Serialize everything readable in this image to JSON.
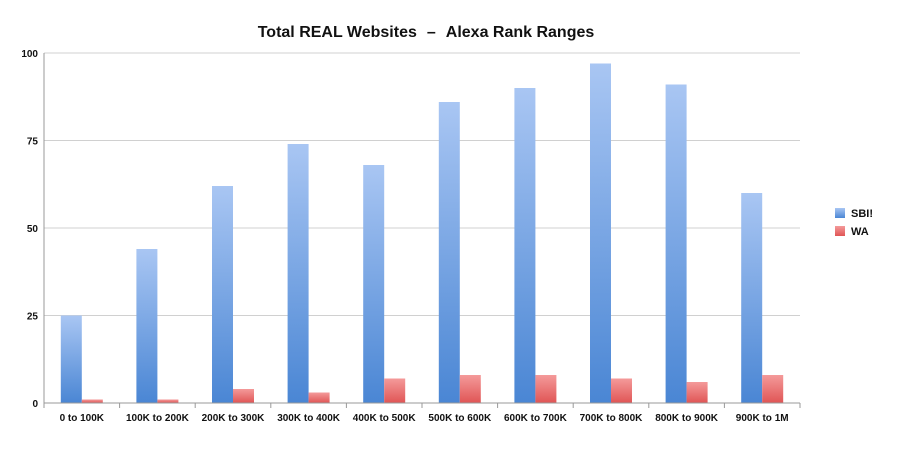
{
  "chart_data": {
    "type": "bar",
    "title": "Total REAL Websites",
    "title_separator": "–",
    "subtitle": "Alexa Rank Ranges",
    "xlabel": "",
    "ylabel": "",
    "ylim": [
      0,
      100
    ],
    "yticks": [
      0,
      25,
      50,
      75,
      100
    ],
    "grid": true,
    "legend_position": "right",
    "categories": [
      "0 to 100K",
      "100K to 200K",
      "200K to 300K",
      "300K to 400K",
      "400K to 500K",
      "500K to 600K",
      "600K to 700K",
      "700K to 800K",
      "800K to 900K",
      "900K to 1M"
    ],
    "series": [
      {
        "name": "SBI!",
        "color": "#4a86d4",
        "values": [
          25,
          44,
          62,
          74,
          68,
          86,
          90,
          97,
          91,
          60
        ]
      },
      {
        "name": "WA",
        "color": "#e05555",
        "values": [
          1,
          1,
          4,
          3,
          7,
          8,
          8,
          7,
          6,
          8
        ]
      }
    ]
  }
}
